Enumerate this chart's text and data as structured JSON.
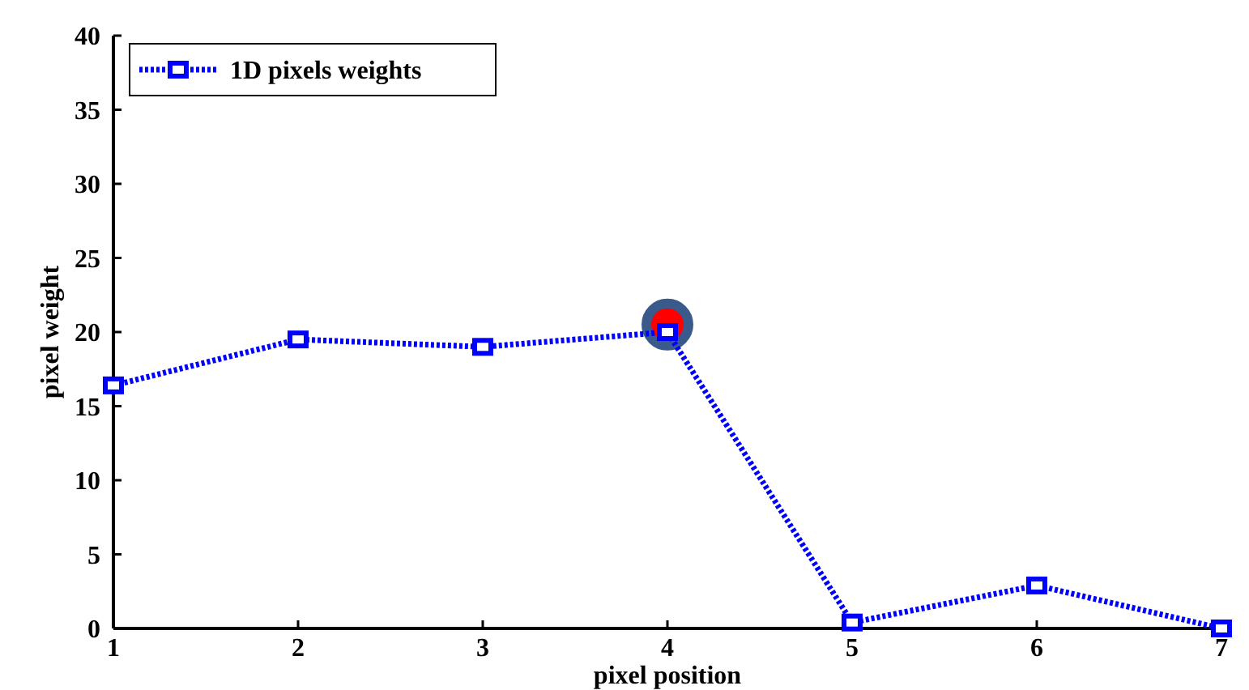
{
  "chart_data": {
    "type": "line",
    "xlabel": "pixel position",
    "ylabel": "pixel weight",
    "x": [
      1,
      2,
      3,
      4,
      5,
      6,
      7
    ],
    "series": [
      {
        "name": "1D pixels weights",
        "color": "#0000ff",
        "values": [
          16.4,
          19.5,
          19,
          20,
          0.4,
          2.9,
          0
        ],
        "marker": "square",
        "line_style": "dotted"
      },
      {
        "type": "scatter",
        "color": "#ff0000",
        "x": [
          4
        ],
        "values": [
          20.5
        ],
        "marker": "circle"
      }
    ],
    "xlim": [
      1,
      7
    ],
    "xticks": [
      1,
      2,
      3,
      4,
      5,
      6,
      7
    ],
    "ylim": [
      0,
      40
    ],
    "yticks": [
      0,
      5,
      10,
      15,
      20,
      25,
      30,
      35,
      40
    ],
    "legend": "top left",
    "grid": false
  }
}
